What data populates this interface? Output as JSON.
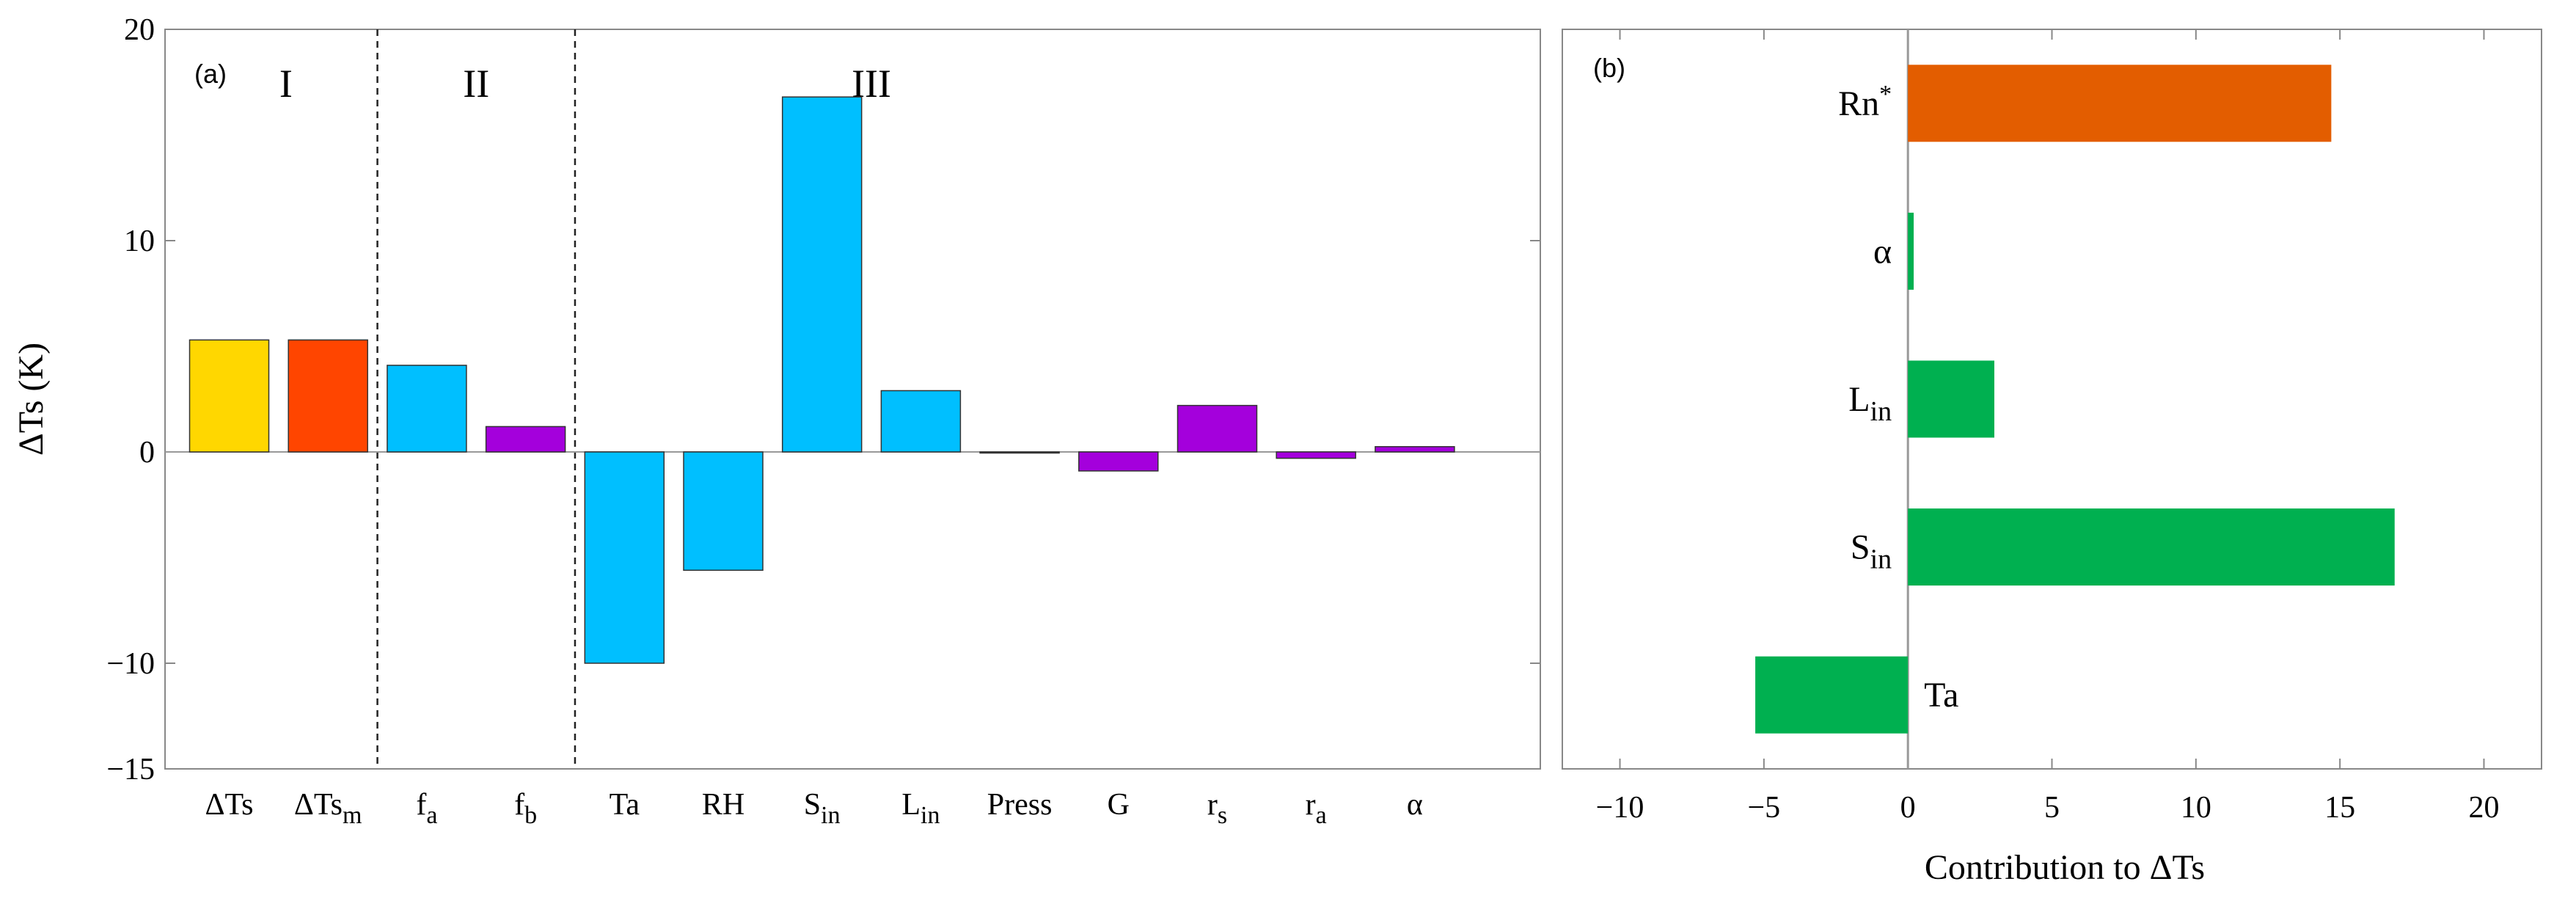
{
  "chart_data": [
    {
      "type": "bar",
      "panel_label": "(a)",
      "ylabel": "ΔTs (K)",
      "ylim": [
        -15,
        20
      ],
      "yticks": [
        -15,
        -10,
        0,
        10,
        20
      ],
      "grid": false,
      "groups": [
        {
          "label": "I",
          "from": 0,
          "to": 1
        },
        {
          "label": "II",
          "from": 2,
          "to": 3
        },
        {
          "label": "III",
          "from": 4,
          "to": 12
        }
      ],
      "categories": [
        {
          "main": "ΔTs",
          "sub": ""
        },
        {
          "main": "ΔTs",
          "sub": "m"
        },
        {
          "main": "f",
          "sub": "a"
        },
        {
          "main": "f",
          "sub": "b"
        },
        {
          "main": "Ta",
          "sub": ""
        },
        {
          "main": "RH",
          "sub": ""
        },
        {
          "main": "S",
          "sub": "in"
        },
        {
          "main": "L",
          "sub": "in"
        },
        {
          "main": "Press",
          "sub": ""
        },
        {
          "main": "G",
          "sub": ""
        },
        {
          "main": "r",
          "sub": "s"
        },
        {
          "main": "r",
          "sub": "a"
        },
        {
          "main": "α",
          "sub": ""
        }
      ],
      "values": [
        5.3,
        5.3,
        4.1,
        1.2,
        -10.0,
        -5.6,
        16.8,
        2.9,
        0.0,
        -0.9,
        2.2,
        -0.3,
        0.25
      ],
      "colors": [
        "#FFD700",
        "#FF4500",
        "#00BFFF",
        "#A400DC",
        "#00BFFF",
        "#00BFFF",
        "#00BFFF",
        "#00BFFF",
        "#00BFFF",
        "#A400DC",
        "#A400DC",
        "#A400DC",
        "#A400DC"
      ]
    },
    {
      "type": "bar",
      "orientation": "horizontal",
      "panel_label": "(b)",
      "xlabel": "Contribution to ΔTs",
      "xlim": [
        -12,
        22
      ],
      "xticks": [
        -10,
        -5,
        0,
        5,
        10,
        15,
        20
      ],
      "grid": false,
      "categories": [
        {
          "main": "Rn",
          "sub": "",
          "sup": "*"
        },
        {
          "main": "α",
          "sub": "",
          "sup": ""
        },
        {
          "main": "L",
          "sub": "in",
          "sup": ""
        },
        {
          "main": "S",
          "sub": "in",
          "sup": ""
        },
        {
          "main": "Ta",
          "sub": "",
          "sup": ""
        }
      ],
      "values": [
        14.7,
        0.2,
        3.0,
        16.9,
        -5.3
      ],
      "colors": [
        "#E35D00",
        "#00B050",
        "#00B050",
        "#00B050",
        "#00B050"
      ]
    }
  ]
}
